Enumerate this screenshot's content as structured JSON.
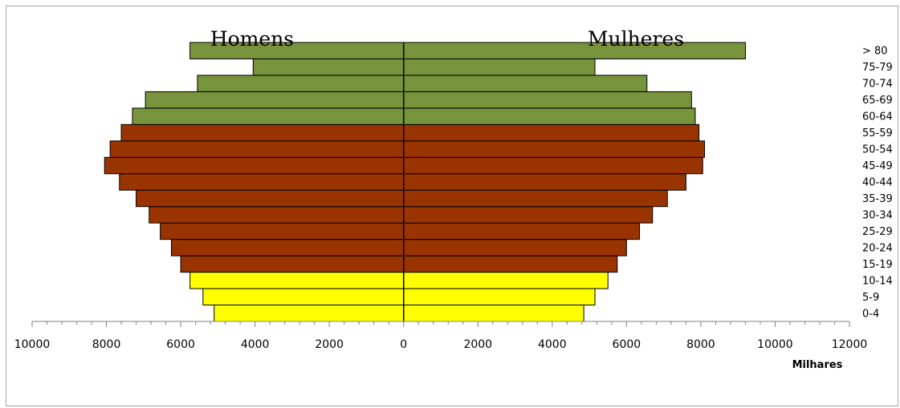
{
  "chart_data": {
    "type": "bar",
    "orientation": "horizontal",
    "left_title": "Homens",
    "right_title": "Mulheres",
    "xlabel": "Milhares",
    "x_ticks": [
      "10000",
      "8000",
      "6000",
      "4000",
      "2000",
      "0",
      "2000",
      "4000",
      "6000",
      "8000",
      "10000",
      "12000"
    ],
    "xlim": [
      -10000,
      12000
    ],
    "categories": [
      "0-4",
      "5-9",
      "10-14",
      "15-19",
      "20-24",
      "25-29",
      "30-34",
      "35-39",
      "40-44",
      "45-49",
      "50-54",
      "55-59",
      "60-64",
      "65-69",
      "70-74",
      "75-79",
      "> 80"
    ],
    "series": [
      {
        "name": "Homens",
        "values": [
          5100,
          5400,
          5750,
          6000,
          6250,
          6550,
          6850,
          7200,
          7650,
          8050,
          7900,
          7600,
          7300,
          6950,
          5550,
          4050,
          5750
        ]
      },
      {
        "name": "Mulheres",
        "values": [
          4850,
          5150,
          5500,
          5750,
          6000,
          6350,
          6700,
          7100,
          7600,
          8050,
          8100,
          7950,
          7850,
          7750,
          6550,
          5150,
          9200
        ]
      }
    ],
    "group_colors": [
      "#ffff00",
      "#993300",
      "#77933c"
    ],
    "group_of_category": [
      0,
      0,
      0,
      1,
      1,
      1,
      1,
      1,
      1,
      1,
      1,
      1,
      2,
      2,
      2,
      2,
      2
    ],
    "grid": false,
    "legend": "none"
  }
}
